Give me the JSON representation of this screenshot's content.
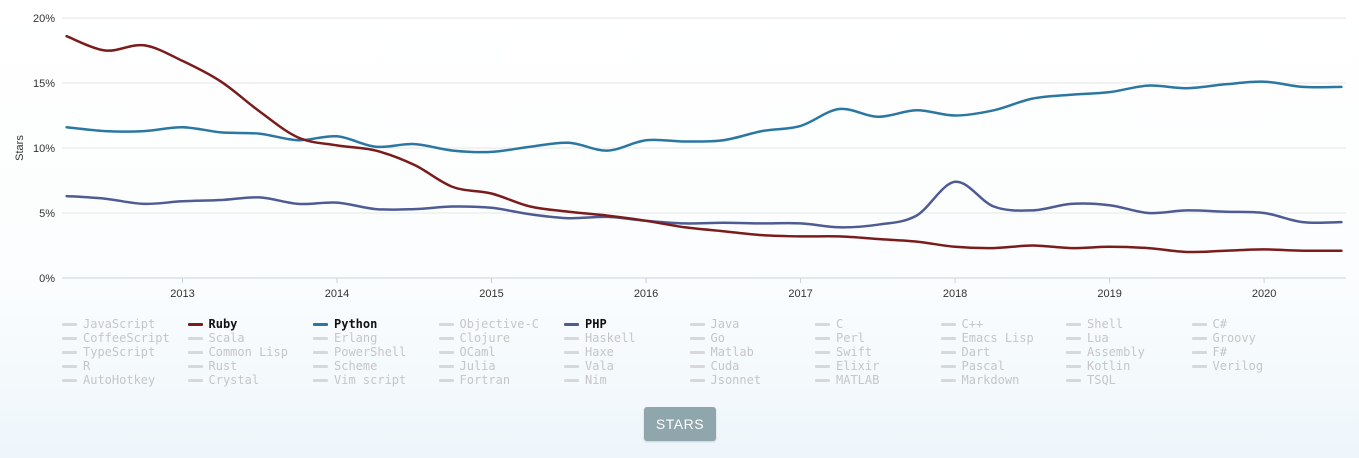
{
  "chart_data": {
    "type": "line",
    "ylabel": "Stars",
    "ylim": [
      0,
      20
    ],
    "yticks": [
      0,
      5,
      10,
      15,
      20
    ],
    "ytick_labels": [
      "0%",
      "5%",
      "10%",
      "15%",
      "20%"
    ],
    "xlim": [
      2012.22,
      2020.53
    ],
    "xticks": [
      2013,
      2014,
      2015,
      2016,
      2017,
      2018,
      2019,
      2020
    ],
    "xtick_labels": [
      "2013",
      "2014",
      "2015",
      "2016",
      "2017",
      "2018",
      "2019",
      "2020"
    ],
    "grid": true,
    "series": [
      {
        "name": "Python",
        "color": "#2b77a1",
        "points": [
          [
            2012.25,
            11.6
          ],
          [
            2012.5,
            11.3
          ],
          [
            2012.75,
            11.3
          ],
          [
            2013.0,
            11.6
          ],
          [
            2013.25,
            11.2
          ],
          [
            2013.5,
            11.1
          ],
          [
            2013.75,
            10.6
          ],
          [
            2014.0,
            10.9
          ],
          [
            2014.25,
            10.1
          ],
          [
            2014.5,
            10.3
          ],
          [
            2014.75,
            9.8
          ],
          [
            2015.0,
            9.7
          ],
          [
            2015.25,
            10.1
          ],
          [
            2015.5,
            10.4
          ],
          [
            2015.75,
            9.8
          ],
          [
            2016.0,
            10.6
          ],
          [
            2016.25,
            10.5
          ],
          [
            2016.5,
            10.6
          ],
          [
            2016.75,
            11.3
          ],
          [
            2017.0,
            11.7
          ],
          [
            2017.25,
            13.0
          ],
          [
            2017.5,
            12.4
          ],
          [
            2017.75,
            12.9
          ],
          [
            2018.0,
            12.5
          ],
          [
            2018.25,
            12.9
          ],
          [
            2018.5,
            13.8
          ],
          [
            2018.75,
            14.1
          ],
          [
            2019.0,
            14.3
          ],
          [
            2019.25,
            14.8
          ],
          [
            2019.5,
            14.6
          ],
          [
            2019.75,
            14.9
          ],
          [
            2020.0,
            15.1
          ],
          [
            2020.25,
            14.7
          ],
          [
            2020.5,
            14.7
          ]
        ]
      },
      {
        "name": "PHP",
        "color": "#4f5b93",
        "points": [
          [
            2012.25,
            6.3
          ],
          [
            2012.5,
            6.1
          ],
          [
            2012.75,
            5.7
          ],
          [
            2013.0,
            5.9
          ],
          [
            2013.25,
            6.0
          ],
          [
            2013.5,
            6.2
          ],
          [
            2013.75,
            5.7
          ],
          [
            2014.0,
            5.8
          ],
          [
            2014.25,
            5.3
          ],
          [
            2014.5,
            5.3
          ],
          [
            2014.75,
            5.5
          ],
          [
            2015.0,
            5.4
          ],
          [
            2015.25,
            4.9
          ],
          [
            2015.5,
            4.6
          ],
          [
            2015.75,
            4.7
          ],
          [
            2016.0,
            4.4
          ],
          [
            2016.25,
            4.2
          ],
          [
            2016.5,
            4.25
          ],
          [
            2016.75,
            4.2
          ],
          [
            2017.0,
            4.2
          ],
          [
            2017.25,
            3.9
          ],
          [
            2017.5,
            4.1
          ],
          [
            2017.75,
            4.8
          ],
          [
            2018.0,
            7.4
          ],
          [
            2018.25,
            5.5
          ],
          [
            2018.5,
            5.2
          ],
          [
            2018.75,
            5.7
          ],
          [
            2019.0,
            5.6
          ],
          [
            2019.25,
            5.0
          ],
          [
            2019.5,
            5.2
          ],
          [
            2019.75,
            5.1
          ],
          [
            2020.0,
            5.0
          ],
          [
            2020.25,
            4.3
          ],
          [
            2020.5,
            4.3
          ]
        ]
      },
      {
        "name": "Ruby",
        "color": "#7a1c1c",
        "points": [
          [
            2012.25,
            18.6
          ],
          [
            2012.5,
            17.5
          ],
          [
            2012.75,
            17.9
          ],
          [
            2013.0,
            16.7
          ],
          [
            2013.25,
            15.1
          ],
          [
            2013.5,
            12.8
          ],
          [
            2013.75,
            10.8
          ],
          [
            2014.0,
            10.2
          ],
          [
            2014.25,
            9.8
          ],
          [
            2014.5,
            8.7
          ],
          [
            2014.75,
            7.0
          ],
          [
            2015.0,
            6.5
          ],
          [
            2015.25,
            5.5
          ],
          [
            2015.5,
            5.1
          ],
          [
            2015.75,
            4.8
          ],
          [
            2016.0,
            4.4
          ],
          [
            2016.25,
            3.9
          ],
          [
            2016.5,
            3.6
          ],
          [
            2016.75,
            3.3
          ],
          [
            2017.0,
            3.2
          ],
          [
            2017.25,
            3.2
          ],
          [
            2017.5,
            3.0
          ],
          [
            2017.75,
            2.8
          ],
          [
            2018.0,
            2.4
          ],
          [
            2018.25,
            2.3
          ],
          [
            2018.5,
            2.5
          ],
          [
            2018.75,
            2.3
          ],
          [
            2019.0,
            2.4
          ],
          [
            2019.25,
            2.3
          ],
          [
            2019.5,
            2.0
          ],
          [
            2019.75,
            2.1
          ],
          [
            2020.0,
            2.2
          ],
          [
            2020.25,
            2.1
          ],
          [
            2020.5,
            2.1
          ]
        ]
      }
    ]
  },
  "legend": [
    {
      "label": "JavaScript",
      "active": false
    },
    {
      "label": "Ruby",
      "active": true,
      "color": "#7a1c1c"
    },
    {
      "label": "Python",
      "active": true,
      "color": "#2b77a1"
    },
    {
      "label": "Objective-C",
      "active": false
    },
    {
      "label": "PHP",
      "active": true,
      "color": "#4f5b93"
    },
    {
      "label": "Java",
      "active": false
    },
    {
      "label": "C",
      "active": false
    },
    {
      "label": "C++",
      "active": false
    },
    {
      "label": "Shell",
      "active": false
    },
    {
      "label": "C#",
      "active": false
    },
    {
      "label": "CoffeeScript",
      "active": false
    },
    {
      "label": "Scala",
      "active": false
    },
    {
      "label": "Erlang",
      "active": false
    },
    {
      "label": "Clojure",
      "active": false
    },
    {
      "label": "Haskell",
      "active": false
    },
    {
      "label": "Go",
      "active": false
    },
    {
      "label": "Perl",
      "active": false
    },
    {
      "label": "Emacs Lisp",
      "active": false
    },
    {
      "label": "Lua",
      "active": false
    },
    {
      "label": "Groovy",
      "active": false
    },
    {
      "label": "TypeScript",
      "active": false
    },
    {
      "label": "Common Lisp",
      "active": false
    },
    {
      "label": "PowerShell",
      "active": false
    },
    {
      "label": "OCaml",
      "active": false
    },
    {
      "label": "Haxe",
      "active": false
    },
    {
      "label": "Matlab",
      "active": false
    },
    {
      "label": "Swift",
      "active": false
    },
    {
      "label": "Dart",
      "active": false
    },
    {
      "label": "Assembly",
      "active": false
    },
    {
      "label": "F#",
      "active": false
    },
    {
      "label": "R",
      "active": false
    },
    {
      "label": "Rust",
      "active": false
    },
    {
      "label": "Scheme",
      "active": false
    },
    {
      "label": "Julia",
      "active": false
    },
    {
      "label": "Vala",
      "active": false
    },
    {
      "label": "Cuda",
      "active": false
    },
    {
      "label": "Elixir",
      "active": false
    },
    {
      "label": "Pascal",
      "active": false
    },
    {
      "label": "Kotlin",
      "active": false
    },
    {
      "label": "Verilog",
      "active": false
    },
    {
      "label": "AutoHotkey",
      "active": false
    },
    {
      "label": "Crystal",
      "active": false
    },
    {
      "label": "Vim script",
      "active": false
    },
    {
      "label": "Fortran",
      "active": false
    },
    {
      "label": "Nim",
      "active": false
    },
    {
      "label": "Jsonnet",
      "active": false
    },
    {
      "label": "MATLAB",
      "active": false
    },
    {
      "label": "Markdown",
      "active": false
    },
    {
      "label": "TSQL",
      "active": false
    }
  ],
  "button": {
    "label": "STARS"
  }
}
